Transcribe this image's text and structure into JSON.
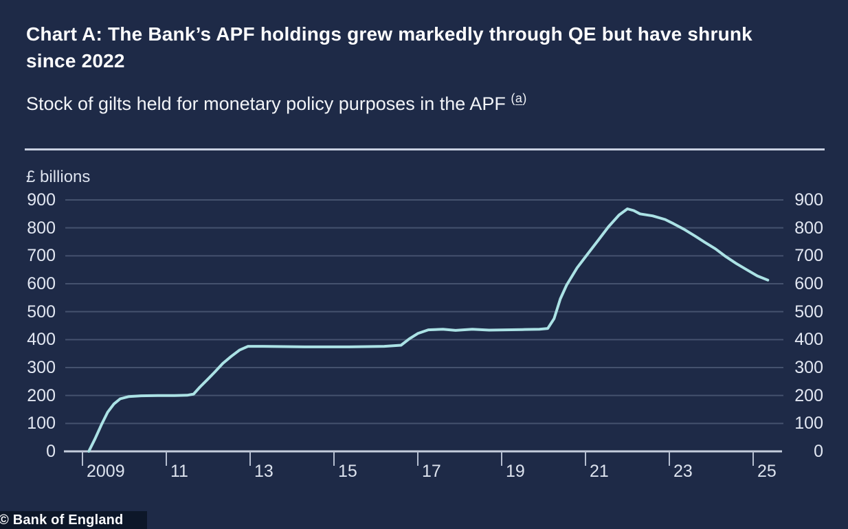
{
  "header": {
    "title": "Chart A: The Bank’s APF holdings grew markedly through QE but have shrunk since 2022",
    "subtitle": "Stock of gilts held for monetary policy purposes in the APF",
    "footnote_prefix": "(",
    "footnote_letter": "a",
    "footnote_suffix": ")"
  },
  "footer": {
    "text": "© Bank of England"
  },
  "colors": {
    "background": "#1e2a47",
    "line": "#abe2e5",
    "gridline": "#45526e",
    "axis": "#c6cedd",
    "tick": "#b6bfd1",
    "text": "#f4f6fa",
    "footer_bg": "#0d1729"
  },
  "chart_data": {
    "type": "line",
    "title": "Chart A: The Bank’s APF holdings grew markedly through QE but have shrunk since 2022",
    "subtitle": "Stock of gilts held for monetary policy purposes in the APF (a)",
    "xlabel": "",
    "ylabel": "£ billions",
    "ylim": [
      0,
      900
    ],
    "xlim": [
      2008.6,
      2025.7
    ],
    "grid": "horizontal gridlines at every 100, y labels on both left and right sides",
    "legend": "none",
    "source": "© Bank of England",
    "y_axis": {
      "ticks": [
        0,
        100,
        200,
        300,
        400,
        500,
        600,
        700,
        800,
        900
      ]
    },
    "x_axis": {
      "ticks": [
        {
          "year": 2009,
          "label": "2009"
        },
        {
          "year": 2011,
          "label": "11"
        },
        {
          "year": 2013,
          "label": "13"
        },
        {
          "year": 2015,
          "label": "15"
        },
        {
          "year": 2017,
          "label": "17"
        },
        {
          "year": 2019,
          "label": "19"
        },
        {
          "year": 2021,
          "label": "21"
        },
        {
          "year": 2023,
          "label": "23"
        },
        {
          "year": 2025,
          "label": "25"
        }
      ]
    },
    "series": [
      {
        "name": "Stock of gilts held in the APF (£ billions)",
        "points": [
          [
            2009.15,
            0
          ],
          [
            2009.3,
            45
          ],
          [
            2009.45,
            95
          ],
          [
            2009.6,
            140
          ],
          [
            2009.75,
            170
          ],
          [
            2009.9,
            188
          ],
          [
            2010.1,
            196
          ],
          [
            2010.4,
            199
          ],
          [
            2010.8,
            200
          ],
          [
            2011.2,
            200
          ],
          [
            2011.5,
            201
          ],
          [
            2011.65,
            205
          ],
          [
            2011.8,
            230
          ],
          [
            2012.0,
            260
          ],
          [
            2012.15,
            283
          ],
          [
            2012.35,
            315
          ],
          [
            2012.55,
            340
          ],
          [
            2012.75,
            363
          ],
          [
            2012.95,
            376
          ],
          [
            2013.3,
            376
          ],
          [
            2013.8,
            375
          ],
          [
            2014.3,
            374
          ],
          [
            2014.8,
            374
          ],
          [
            2015.3,
            374
          ],
          [
            2015.8,
            375
          ],
          [
            2016.2,
            376
          ],
          [
            2016.6,
            380
          ],
          [
            2016.8,
            403
          ],
          [
            2017.0,
            422
          ],
          [
            2017.25,
            435
          ],
          [
            2017.6,
            437
          ],
          [
            2017.9,
            433
          ],
          [
            2018.3,
            437
          ],
          [
            2018.7,
            434
          ],
          [
            2019.1,
            435
          ],
          [
            2019.5,
            436
          ],
          [
            2019.9,
            437
          ],
          [
            2020.1,
            440
          ],
          [
            2020.25,
            475
          ],
          [
            2020.4,
            546
          ],
          [
            2020.55,
            595
          ],
          [
            2020.8,
            657
          ],
          [
            2021.05,
            706
          ],
          [
            2021.3,
            755
          ],
          [
            2021.55,
            804
          ],
          [
            2021.8,
            846
          ],
          [
            2022.0,
            868
          ],
          [
            2022.15,
            862
          ],
          [
            2022.3,
            850
          ],
          [
            2022.6,
            843
          ],
          [
            2022.9,
            830
          ],
          [
            2023.1,
            815
          ],
          [
            2023.35,
            795
          ],
          [
            2023.6,
            772
          ],
          [
            2023.85,
            748
          ],
          [
            2024.1,
            725
          ],
          [
            2024.35,
            697
          ],
          [
            2024.6,
            672
          ],
          [
            2024.85,
            650
          ],
          [
            2025.1,
            628
          ],
          [
            2025.35,
            613
          ]
        ]
      }
    ]
  }
}
